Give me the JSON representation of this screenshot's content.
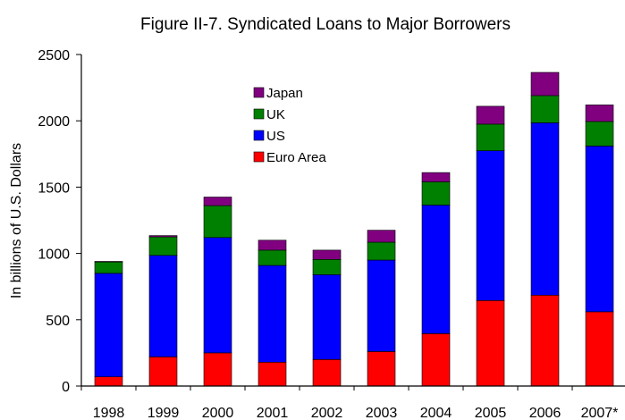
{
  "chart_data": {
    "type": "bar",
    "stacked": true,
    "title": "Figure II-7. Syndicated Loans to Major Borrowers",
    "xlabel": "",
    "ylabel": "In billions of U.S. Dollars",
    "ylim": [
      0,
      2500
    ],
    "yticks": [
      0,
      500,
      1000,
      1500,
      2000,
      2500
    ],
    "categories": [
      "1998",
      "1999",
      "2000",
      "2001",
      "2002",
      "2003",
      "2004",
      "2005",
      "2006",
      "2007*"
    ],
    "series": [
      {
        "name": "Euro Area",
        "color": "#ff0000",
        "values": [
          70,
          220,
          250,
          180,
          200,
          260,
          395,
          645,
          685,
          560
        ]
      },
      {
        "name": "US",
        "color": "#0000ff",
        "values": [
          780,
          765,
          870,
          730,
          640,
          690,
          970,
          1130,
          1300,
          1250
        ]
      },
      {
        "name": "UK",
        "color": "#008000",
        "values": [
          85,
          140,
          240,
          115,
          115,
          135,
          175,
          200,
          205,
          185
        ]
      },
      {
        "name": "Japan",
        "color": "#800080",
        "values": [
          5,
          10,
          65,
          75,
          70,
          90,
          70,
          135,
          175,
          125
        ]
      }
    ],
    "legend_order": [
      "Japan",
      "UK",
      "US",
      "Euro Area"
    ],
    "legend_position": "top-left-inside",
    "grid": false
  }
}
